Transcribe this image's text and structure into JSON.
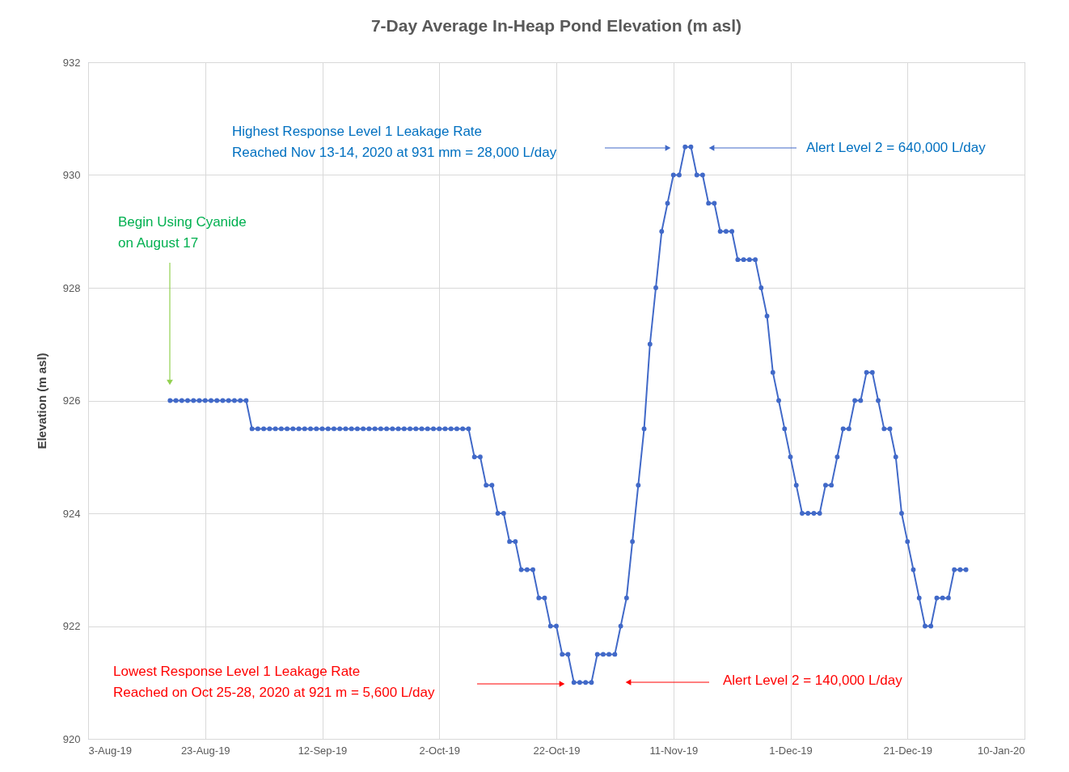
{
  "chart_data": {
    "type": "line",
    "title": "7-Day Average In-Heap Pond Elevation (m asl)",
    "ylabel": "Elevation (m asl)",
    "x": [
      "2019-08-17",
      "2019-08-18",
      "2019-08-19",
      "2019-08-20",
      "2019-08-21",
      "2019-08-22",
      "2019-08-23",
      "2019-08-24",
      "2019-08-25",
      "2019-08-26",
      "2019-08-27",
      "2019-08-28",
      "2019-08-29",
      "2019-08-30",
      "2019-08-31",
      "2019-09-01",
      "2019-09-02",
      "2019-09-03",
      "2019-09-04",
      "2019-09-05",
      "2019-09-06",
      "2019-09-07",
      "2019-09-08",
      "2019-09-09",
      "2019-09-10",
      "2019-09-11",
      "2019-09-12",
      "2019-09-13",
      "2019-09-14",
      "2019-09-15",
      "2019-09-16",
      "2019-09-17",
      "2019-09-18",
      "2019-09-19",
      "2019-09-20",
      "2019-09-21",
      "2019-09-22",
      "2019-09-23",
      "2019-09-24",
      "2019-09-25",
      "2019-09-26",
      "2019-09-27",
      "2019-09-28",
      "2019-09-29",
      "2019-09-30",
      "2019-10-01",
      "2019-10-02",
      "2019-10-03",
      "2019-10-04",
      "2019-10-05",
      "2019-10-06",
      "2019-10-07",
      "2019-10-08",
      "2019-10-09",
      "2019-10-10",
      "2019-10-11",
      "2019-10-12",
      "2019-10-13",
      "2019-10-14",
      "2019-10-15",
      "2019-10-16",
      "2019-10-17",
      "2019-10-18",
      "2019-10-19",
      "2019-10-20",
      "2019-10-21",
      "2019-10-22",
      "2019-10-23",
      "2019-10-24",
      "2019-10-25",
      "2019-10-26",
      "2019-10-27",
      "2019-10-28",
      "2019-10-29",
      "2019-10-30",
      "2019-10-31",
      "2019-11-01",
      "2019-11-02",
      "2019-11-03",
      "2019-11-04",
      "2019-11-05",
      "2019-11-06",
      "2019-11-07",
      "2019-11-08",
      "2019-11-09",
      "2019-11-10",
      "2019-11-11",
      "2019-11-12",
      "2019-11-13",
      "2019-11-14",
      "2019-11-15",
      "2019-11-16",
      "2019-11-17",
      "2019-11-18",
      "2019-11-19",
      "2019-11-20",
      "2019-11-21",
      "2019-11-22",
      "2019-11-23",
      "2019-11-24",
      "2019-11-25",
      "2019-11-26",
      "2019-11-27",
      "2019-11-28",
      "2019-11-29",
      "2019-11-30",
      "2019-12-01",
      "2019-12-02",
      "2019-12-03",
      "2019-12-04",
      "2019-12-05",
      "2019-12-06",
      "2019-12-07",
      "2019-12-08",
      "2019-12-09",
      "2019-12-10",
      "2019-12-11",
      "2019-12-12",
      "2019-12-13",
      "2019-12-14",
      "2019-12-15",
      "2019-12-16",
      "2019-12-17",
      "2019-12-18",
      "2019-12-19",
      "2019-12-20",
      "2019-12-21",
      "2019-12-22",
      "2019-12-23",
      "2019-12-24",
      "2019-12-25",
      "2019-12-26",
      "2019-12-27",
      "2019-12-28",
      "2019-12-29",
      "2019-12-30",
      "2019-12-31"
    ],
    "series": [
      {
        "color": "#4169c8",
        "values": [
          926,
          926,
          926,
          926,
          926,
          926,
          926,
          926,
          926,
          926,
          926,
          926,
          926,
          926,
          925.5,
          925.5,
          925.5,
          925.5,
          925.5,
          925.5,
          925.5,
          925.5,
          925.5,
          925.5,
          925.5,
          925.5,
          925.5,
          925.5,
          925.5,
          925.5,
          925.5,
          925.5,
          925.5,
          925.5,
          925.5,
          925.5,
          925.5,
          925.5,
          925.5,
          925.5,
          925.5,
          925.5,
          925.5,
          925.5,
          925.5,
          925.5,
          925.5,
          925.5,
          925.5,
          925.5,
          925.5,
          925.5,
          925,
          925,
          924.5,
          924.5,
          924,
          924,
          923.5,
          923.5,
          923,
          923,
          923,
          922.5,
          922.5,
          922,
          922,
          921.5,
          921.5,
          921,
          921,
          921,
          921,
          921.5,
          921.5,
          921.5,
          921.5,
          922,
          922.5,
          923.5,
          924.5,
          925.5,
          927,
          928,
          929,
          929.5,
          930,
          930,
          930.5,
          930.5,
          930,
          930,
          929.5,
          929.5,
          929,
          929,
          929,
          928.5,
          928.5,
          928.5,
          928.5,
          928,
          927.5,
          926.5,
          926,
          925.5,
          925,
          924.5,
          924,
          924,
          924,
          924,
          924.5,
          924.5,
          925,
          925.5,
          925.5,
          926,
          926,
          926.5,
          926.5,
          926,
          925.5,
          925.5,
          925,
          924,
          923.5,
          923,
          922.5,
          922,
          922,
          922.5,
          922.5,
          922.5,
          923,
          923,
          923
        ]
      }
    ],
    "xlim": [
      "2019-08-03",
      "2020-01-10"
    ],
    "xticks": [
      {
        "value": "2019-08-03",
        "label": "3-Aug-19"
      },
      {
        "value": "2019-08-23",
        "label": "23-Aug-19"
      },
      {
        "value": "2019-09-12",
        "label": "12-Sep-19"
      },
      {
        "value": "2019-10-02",
        "label": "2-Oct-19"
      },
      {
        "value": "2019-10-22",
        "label": "22-Oct-19"
      },
      {
        "value": "2019-11-11",
        "label": "11-Nov-19"
      },
      {
        "value": "2019-12-01",
        "label": "1-Dec-19"
      },
      {
        "value": "2019-12-21",
        "label": "21-Dec-19"
      },
      {
        "value": "2020-01-10",
        "label": "10-Jan-20"
      }
    ],
    "ylim": [
      920,
      932
    ],
    "yticks": [
      920,
      922,
      924,
      926,
      928,
      930,
      932
    ],
    "grid": true,
    "marker": "circle",
    "line_style": "solid",
    "annotations": [
      "Begin Using Cyanide\non August 17",
      "Highest Response Level 1 Leakage Rate\nReached Nov 13-14, 2020 at 931  mm = 28,000  L/day",
      "Alert Level 2 = 640,000  L/day",
      "Lowest Response Level 1 Leakage Rate\nReached on Oct 25-28, 2020 at 921  m = 5,600  L/day",
      "Alert Level 2  = 140,000  L/day"
    ]
  }
}
